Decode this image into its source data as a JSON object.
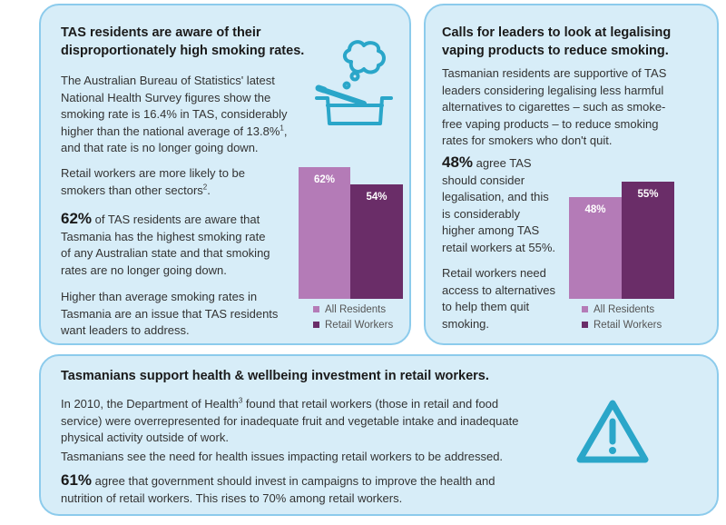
{
  "colors": {
    "accent": "#8ccbec",
    "card_bg": "#d7edf8",
    "all_residents": "#b47bb7",
    "retail_workers": "#6a2d68",
    "icon": "#2aa6c9"
  },
  "left": {
    "title_l1": "TAS residents are aware of their",
    "title_l2": "disproportionately high smoking rates.",
    "p1_l1": "The Australian Bureau of Statistics' latest",
    "p1_l2": "National Health Survey figures show the",
    "p1_l3": "smoking rate is 16.4% in TAS, considerably",
    "p1_l4": "higher than the national average of 13.8%",
    "p1_sup": "1",
    "p1_l4_end": ",",
    "p1_l5": "and that rate is no longer going down.",
    "p2_l1": "Retail workers are more likely to be",
    "p2_l2": "smokers than other sectors",
    "p2_sup": "2",
    "p2_end": ".",
    "p3_big": "62%",
    "p3_l1": " of TAS residents are aware that",
    "p3_l2": "Tasmania has the highest smoking rate",
    "p3_l3": "of any Australian state and that smoking",
    "p3_l4": "rates are no longer going down.",
    "p4_l1": "Higher than average smoking rates in",
    "p4_l2": "Tasmania are an issue that TAS residents",
    "p4_l3": "want leaders to address.",
    "icon": "ashtray-cigarette-icon"
  },
  "right": {
    "title_l1": "Calls for leaders to look at legalising",
    "title_l2": "vaping products to reduce smoking.",
    "p1_l1": "Tasmanian residents are supportive of TAS",
    "p1_l2": "leaders considering legalising less harmful",
    "p1_l3": "alternatives to cigarettes – such as smoke-",
    "p1_l4": "free vaping products – to reduce smoking",
    "p1_l5": "rates for smokers who don't quit.",
    "p2_big": "48%",
    "p2_l1": " agree TAS",
    "p2_l2": "should consider",
    "p2_l3": "legalisation, and this",
    "p2_l4": "is considerably",
    "p2_l5": "higher among TAS",
    "p2_l6": "retail workers at 55%.",
    "p3_l1": "Retail workers need",
    "p3_l2": "access to alternatives",
    "p3_l3": "to help them quit",
    "p3_l4": "smoking."
  },
  "bottom": {
    "title": "Tasmanians support health & wellbeing investment in retail workers.",
    "p1_l1a": "In 2010, the Department of Health",
    "p1_sup": "3",
    "p1_l1b": " found that retail workers (those in retail and food",
    "p1_l2": "service) were overrepresented for inadequate fruit and vegetable intake and inadequate",
    "p1_l3": "physical activity outside of work.",
    "p2": "Tasmanians see the need for health issues impacting retail workers to be addressed.",
    "p3_big": "61%",
    "p3_l1": " agree that government should invest in campaigns to improve the health and",
    "p3_l2": "nutrition of retail workers. This rises to 70% among retail workers.",
    "icon": "warning-triangle-icon"
  },
  "chart_data": [
    {
      "type": "bar",
      "categories": [
        "All Residents",
        "Retail Workers"
      ],
      "values": [
        62,
        54
      ],
      "value_labels": [
        "62%",
        "54%"
      ],
      "legend": [
        "All Residents",
        "Retail Workers"
      ],
      "legend_position": "bottom",
      "grid": false
    },
    {
      "type": "bar",
      "categories": [
        "All Residents",
        "Retail Workers"
      ],
      "values": [
        48,
        55
      ],
      "value_labels": [
        "48%",
        "55%"
      ],
      "legend": [
        "All Residents",
        "Retail Workers"
      ],
      "legend_position": "bottom",
      "grid": false
    }
  ]
}
